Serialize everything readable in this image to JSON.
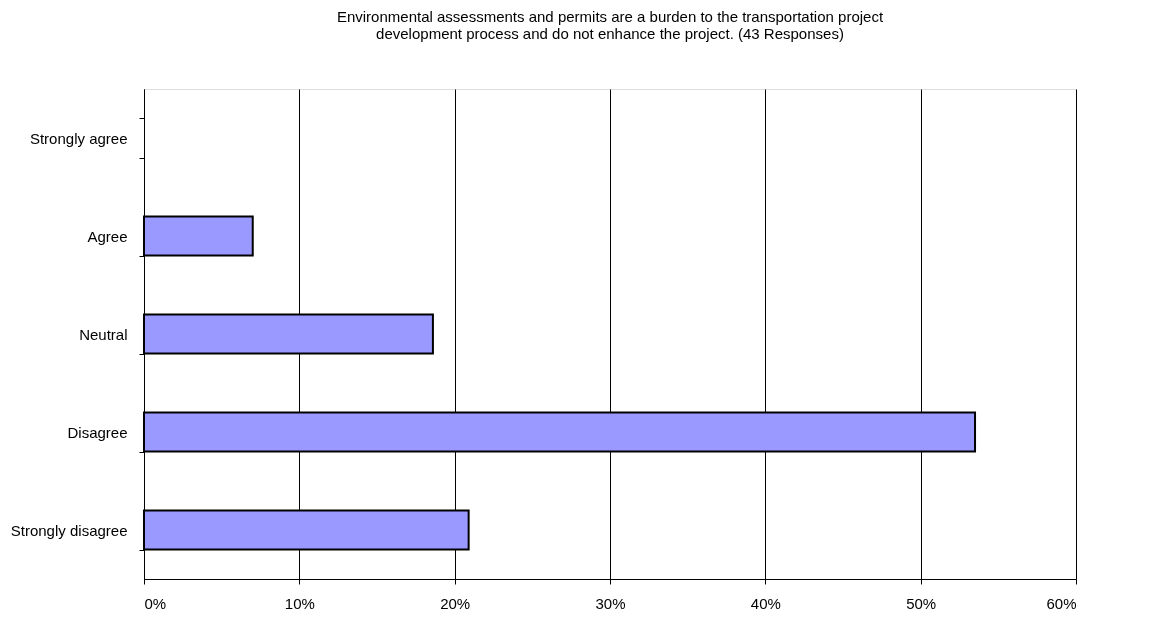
{
  "chart_data": {
    "type": "bar",
    "orientation": "horizontal",
    "title": [
      "Environmental assessments and permits are a burden to the transportation project",
      "development process and do not enhance the project. (43 Responses)"
    ],
    "categories": [
      "Strongly agree",
      "Agree",
      "Neutral",
      "Disagree",
      "Strongly disagree"
    ],
    "values": [
      0,
      7.0,
      18.6,
      53.5,
      20.9
    ],
    "color": "#9999ff",
    "xlim": [
      0,
      60
    ],
    "xticks": [
      {
        "value": 0,
        "label": "0%"
      },
      {
        "value": 10,
        "label": "10%"
      },
      {
        "value": 20,
        "label": "20%"
      },
      {
        "value": 30,
        "label": "30%"
      },
      {
        "value": 40,
        "label": "40%"
      },
      {
        "value": 50,
        "label": "50%"
      },
      {
        "value": 60,
        "label": "60%"
      }
    ],
    "grid": "x"
  }
}
